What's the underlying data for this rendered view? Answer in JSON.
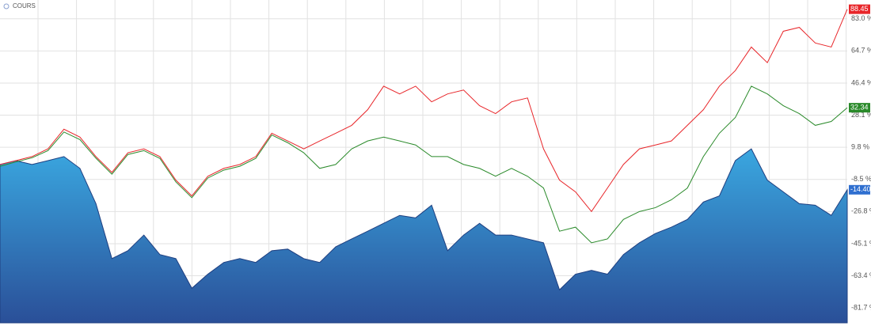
{
  "chart_data": {
    "type": "line",
    "legend": "COURS",
    "ylim": [
      -90.2,
      93.7
    ],
    "yticks": [
      {
        "value": 83.0,
        "label": "83.0 %"
      },
      {
        "value": 64.7,
        "label": "64.7 %"
      },
      {
        "value": 46.4,
        "label": "46.4 %"
      },
      {
        "value": 28.1,
        "label": "28.1 %"
      },
      {
        "value": 9.8,
        "label": "9.8 %"
      },
      {
        "value": -8.5,
        "label": "-8.5 %"
      },
      {
        "value": -26.8,
        "label": "-26.8 %"
      },
      {
        "value": -45.1,
        "label": "-45.1 %"
      },
      {
        "value": -63.4,
        "label": "-63.4 %"
      },
      {
        "value": -81.7,
        "label": "-81.7 %"
      }
    ],
    "grid": true,
    "series": [
      {
        "kind": "area",
        "color": "#2f7fc4",
        "last_label": "-14.40",
        "values": [
          0.0,
          2.2,
          0.0,
          2.2,
          4.5,
          -2.2,
          -22.3,
          -53.6,
          -49.1,
          -40.2,
          -51.3,
          -53.6,
          -70.5,
          -62.5,
          -55.8,
          -53.6,
          -55.8,
          -49.1,
          -48.2,
          -53.6,
          -55.8,
          -46.9,
          -42.4,
          -38.0,
          -33.5,
          -29.0,
          -30.4,
          -23.2,
          -49.1,
          -40.2,
          -33.5,
          -40.2,
          -40.2,
          -42.4,
          -44.6,
          -71.4,
          -62.5,
          -60.3,
          -62.5,
          -51.3,
          -44.6,
          -39.3,
          -35.7,
          -31.3,
          -21.4,
          -17.9,
          2.2,
          8.9,
          -8.9,
          -15.6,
          -22.3,
          -23.2,
          -29.0,
          -14.4
        ]
      },
      {
        "kind": "line",
        "color": "#2a8a2a",
        "last_label": "32.34",
        "values": [
          -1.0,
          1.5,
          3.8,
          7.9,
          18.5,
          14.2,
          3.6,
          -5.5,
          5.7,
          7.9,
          3.5,
          -9.9,
          -18.9,
          -7.7,
          -3.2,
          -1.0,
          3.5,
          16.8,
          12.4,
          6.7,
          -2.2,
          0.0,
          8.9,
          13.4,
          15.6,
          13.4,
          11.1,
          4.5,
          4.5,
          0.0,
          -2.2,
          -6.7,
          -2.2,
          -6.7,
          -13.4,
          -38.0,
          -35.7,
          -44.6,
          -42.4,
          -31.3,
          -26.8,
          -24.6,
          -20.1,
          -13.4,
          4.5,
          17.8,
          26.8,
          44.6,
          40.2,
          33.5,
          29.0,
          22.3,
          24.5,
          32.34
        ]
      },
      {
        "kind": "line",
        "color": "#e8262a",
        "last_label": "88.45",
        "values": [
          0.0,
          2.2,
          4.5,
          8.9,
          20.1,
          15.6,
          4.5,
          -4.5,
          6.7,
          8.9,
          4.5,
          -8.9,
          -17.9,
          -6.7,
          -2.2,
          0.0,
          4.5,
          17.8,
          13.4,
          8.9,
          13.4,
          17.8,
          22.3,
          31.2,
          44.6,
          40.2,
          44.6,
          35.7,
          40.2,
          42.4,
          33.5,
          29.0,
          35.7,
          37.9,
          8.9,
          -8.9,
          -15.6,
          -26.8,
          -13.4,
          0.0,
          8.9,
          11.1,
          13.4,
          22.3,
          31.2,
          44.6,
          53.5,
          66.9,
          58.0,
          75.9,
          78.1,
          69.2,
          66.9,
          88.45
        ]
      }
    ]
  }
}
